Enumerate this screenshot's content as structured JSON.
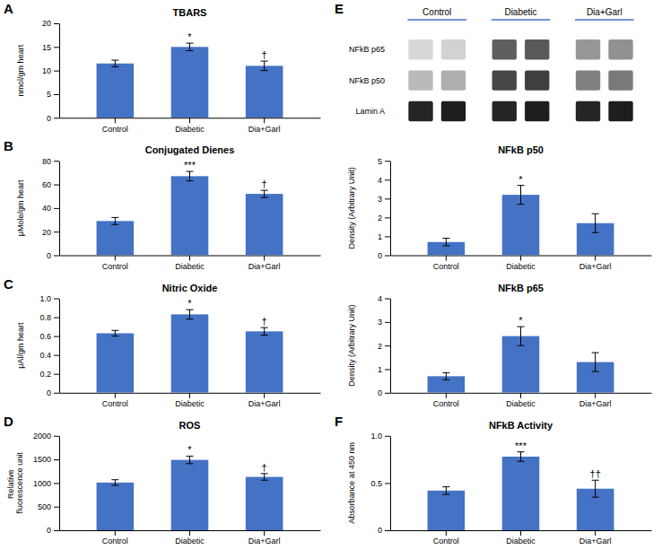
{
  "chart_data": [
    {
      "type": "bar",
      "title": "TBARS",
      "categories": [
        "Control",
        "Diabetic",
        "Dia+Garl"
      ],
      "values": [
        11.5,
        15.0,
        11.0
      ],
      "errors": [
        0.7,
        0.8,
        1.0
      ],
      "color": "#4472C4",
      "ylim": [
        0,
        20
      ],
      "yticks": [
        0,
        5,
        10,
        15,
        20
      ],
      "ylabel": "nmol/gm heart",
      "annotations": [
        {
          "text": "A"
        },
        {
          "category": "Diabetic",
          "text": "*"
        },
        {
          "category": "Dia+Garl",
          "text": "†"
        }
      ]
    },
    {
      "type": "bar",
      "title": "Conjugated Dienes",
      "categories": [
        "Control",
        "Diabetic",
        "Dia+Garl"
      ],
      "values": [
        29,
        67,
        52
      ],
      "errors": [
        3,
        4,
        3
      ],
      "color": "#4472C4",
      "ylim": [
        0,
        80
      ],
      "yticks": [
        0,
        20,
        40,
        60,
        80
      ],
      "ylabel": "μMole/gm heart",
      "annotations": [
        {
          "text": "B"
        },
        {
          "category": "Diabetic",
          "text": "***"
        },
        {
          "category": "Dia+Garl",
          "text": "†"
        }
      ]
    },
    {
      "type": "bar",
      "title": "Nitric Oxide",
      "categories": [
        "Control",
        "Diabetic",
        "Dia+Garl"
      ],
      "values": [
        0.63,
        0.83,
        0.65
      ],
      "errors": [
        0.03,
        0.05,
        0.04
      ],
      "color": "#4472C4",
      "ylim": [
        0,
        1.0
      ],
      "yticks": [
        0,
        0.2,
        0.4,
        0.6,
        0.8,
        {
          "value": 1.0,
          "label": "1.0"
        }
      ],
      "ylabel": "μAl/gm heart",
      "annotations": [
        {
          "text": "C"
        },
        {
          "category": "Diabetic",
          "text": "*"
        },
        {
          "category": "Dia+Garl",
          "text": "†"
        }
      ]
    },
    {
      "type": "bar",
      "title": "ROS",
      "categories": [
        "Control",
        "Diabetic",
        "Dia+Garl"
      ],
      "values": [
        1010,
        1490,
        1130
      ],
      "errors": [
        60,
        80,
        70
      ],
      "color": "#4472C4",
      "ylim": [
        0,
        2000
      ],
      "yticks": [
        0,
        500,
        1000,
        1500,
        2000
      ],
      "ylabel": "Relative fluorescence unit",
      "annotations": [
        {
          "text": "D"
        },
        {
          "category": "Diabetic",
          "text": "*"
        },
        {
          "category": "Dia+Garl",
          "text": "†"
        }
      ]
    },
    {
      "type": "heatmap",
      "categories": [
        "Control",
        "Diabetic",
        "Dia+Garl"
      ],
      "color": "#4472C4",
      "series": [
        {
          "name": "NFkB p65",
          "values": [
            0.25,
            0.28,
            0.7,
            0.72,
            0.5,
            0.52
          ]
        },
        {
          "name": "NFkB p50",
          "values": [
            0.38,
            0.42,
            0.78,
            0.8,
            0.58,
            0.6
          ]
        },
        {
          "name": "Lamin A",
          "values": [
            0.88,
            0.9,
            0.88,
            0.9,
            0.88,
            0.9
          ]
        }
      ],
      "annotations": [
        {
          "text": "E"
        }
      ]
    },
    {
      "type": "bar",
      "title": "NFkB p50",
      "categories": [
        "Control",
        "Diabetic",
        "Dia+Garl"
      ],
      "values": [
        0.7,
        3.2,
        1.7
      ],
      "errors": [
        0.2,
        0.5,
        0.5
      ],
      "color": "#4472C4",
      "ylim": [
        0,
        5
      ],
      "yticks": [
        0,
        1,
        2,
        3,
        4,
        5
      ],
      "ylabel": "Density (Arbitrary Unit)",
      "annotations": [
        {
          "category": "Diabetic",
          "text": "*"
        }
      ]
    },
    {
      "type": "bar",
      "title": "NFkB p65",
      "categories": [
        "Control",
        "Diabetic",
        "Dia+Garl"
      ],
      "values": [
        0.7,
        2.4,
        1.3
      ],
      "errors": [
        0.15,
        0.4,
        0.4
      ],
      "color": "#4472C4",
      "ylim": [
        0,
        4
      ],
      "yticks": [
        0,
        1,
        2,
        3,
        4
      ],
      "ylabel": "Density (Arbitrary Unit)",
      "annotations": [
        {
          "category": "Diabetic",
          "text": "*"
        }
      ]
    },
    {
      "type": "bar",
      "title": "NFkB Activity",
      "categories": [
        "Control",
        "Diabetic",
        "Dia+Garl"
      ],
      "values": [
        0.42,
        0.78,
        0.44
      ],
      "errors": [
        0.04,
        0.05,
        0.09
      ],
      "color": "#4472C4",
      "ylim": [
        0,
        1
      ],
      "yticks": [
        0,
        0.5,
        {
          "value": 1.0,
          "label": "1.0"
        }
      ],
      "ylabel": "Absorbance at 450 nm",
      "annotations": [
        {
          "text": "F"
        },
        {
          "category": "Diabetic",
          "text": "***"
        },
        {
          "category": "Dia+Garl",
          "text": "††"
        }
      ]
    }
  ]
}
